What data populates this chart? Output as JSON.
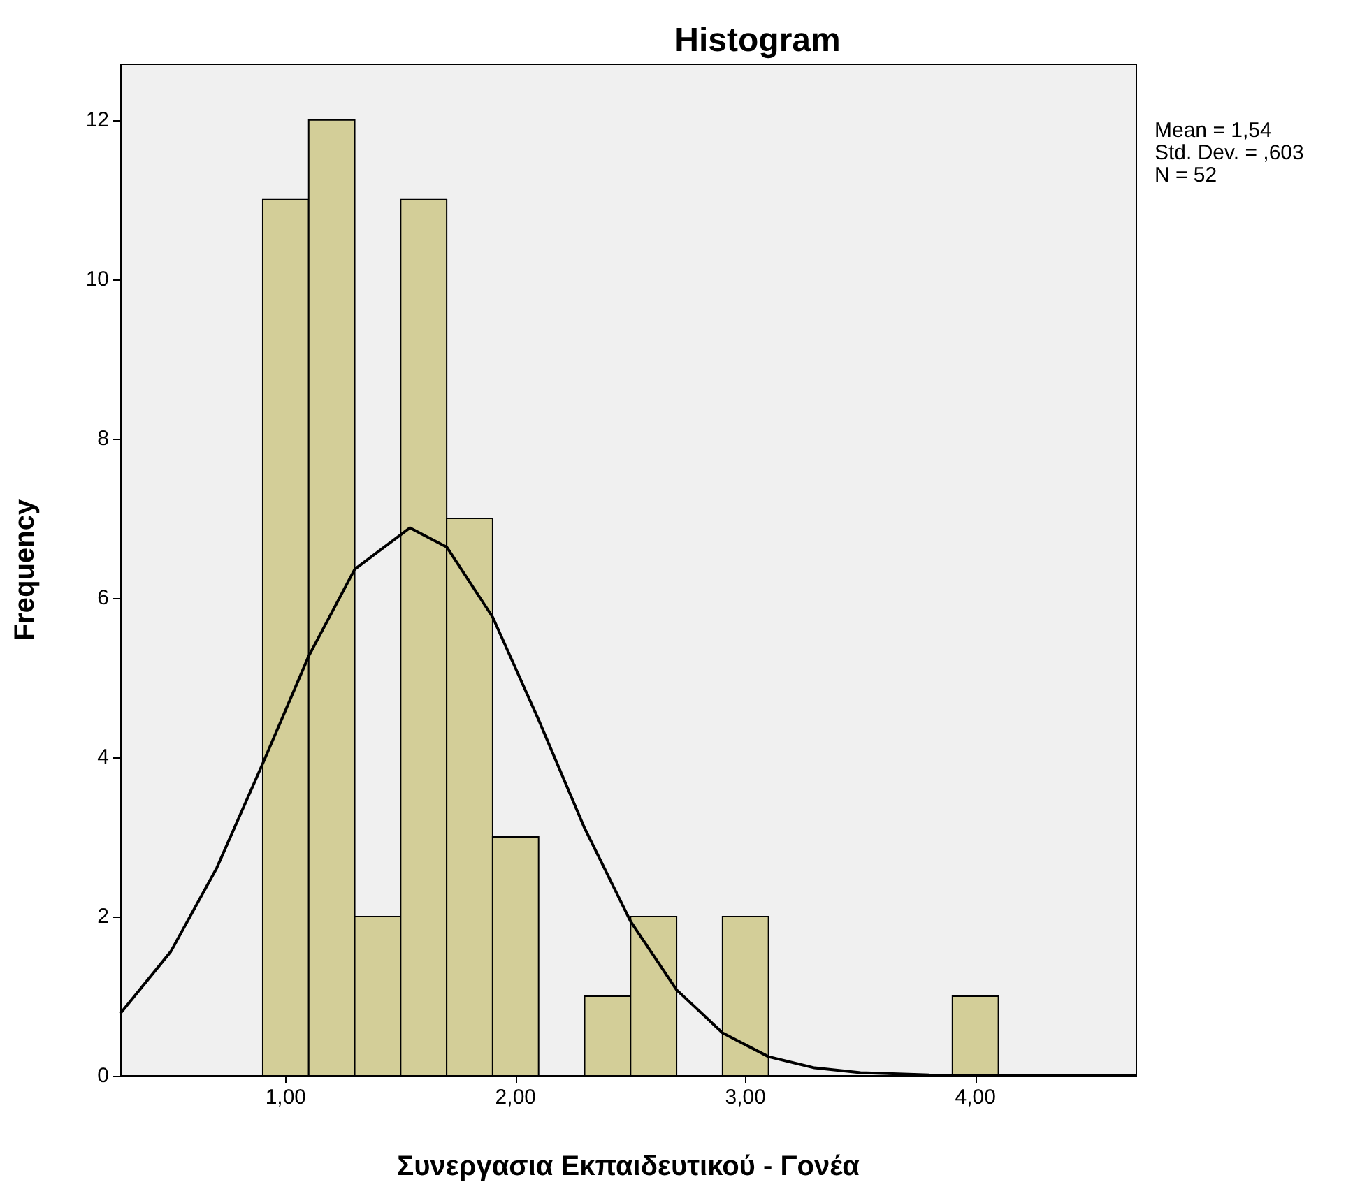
{
  "chart_data": {
    "type": "histogram",
    "title": "Histogram",
    "xlabel": "Συνεργασια Εκπαιδευτικού - Γονέα",
    "ylabel": "Frequency",
    "annotations": [
      "Mean = 1,54",
      "Std. Dev. = ,603",
      "N = 52"
    ],
    "bins": [
      0.9,
      1.1,
      1.3,
      1.5,
      1.7,
      1.9,
      2.1,
      2.3,
      2.5,
      2.7,
      2.9,
      3.1,
      3.3,
      3.5,
      3.7,
      3.9,
      4.1
    ],
    "values": [
      11,
      12,
      2,
      11,
      7,
      3,
      0,
      1,
      2,
      0,
      2,
      0,
      0,
      0,
      0,
      1
    ],
    "color": "#d3ce98",
    "series": [
      {
        "type": "line",
        "color": "#000000",
        "x": [
          0.28,
          0.5,
          0.7,
          0.9,
          1.1,
          1.3,
          1.54,
          1.7,
          1.9,
          2.1,
          2.3,
          2.5,
          2.7,
          2.9,
          3.1,
          3.3,
          3.5,
          3.8,
          4.2,
          4.7
        ],
        "values": [
          0.78,
          1.56,
          2.61,
          3.92,
          5.27,
          6.36,
          6.88,
          6.64,
          5.76,
          4.47,
          3.11,
          1.94,
          1.08,
          0.54,
          0.24,
          0.1,
          0.04,
          0.01,
          0,
          0
        ]
      }
    ],
    "xlim": [
      0.28,
      4.7
    ],
    "xticks": [
      {
        "value": 1,
        "label": "1,00"
      },
      {
        "value": 2,
        "label": "2,00"
      },
      {
        "value": 3,
        "label": "3,00"
      },
      {
        "value": 4,
        "label": "4,00"
      }
    ],
    "ylim": [
      0,
      12.7
    ],
    "yticks": [
      0,
      2,
      4,
      6,
      8,
      10,
      12
    ],
    "grid": false
  }
}
